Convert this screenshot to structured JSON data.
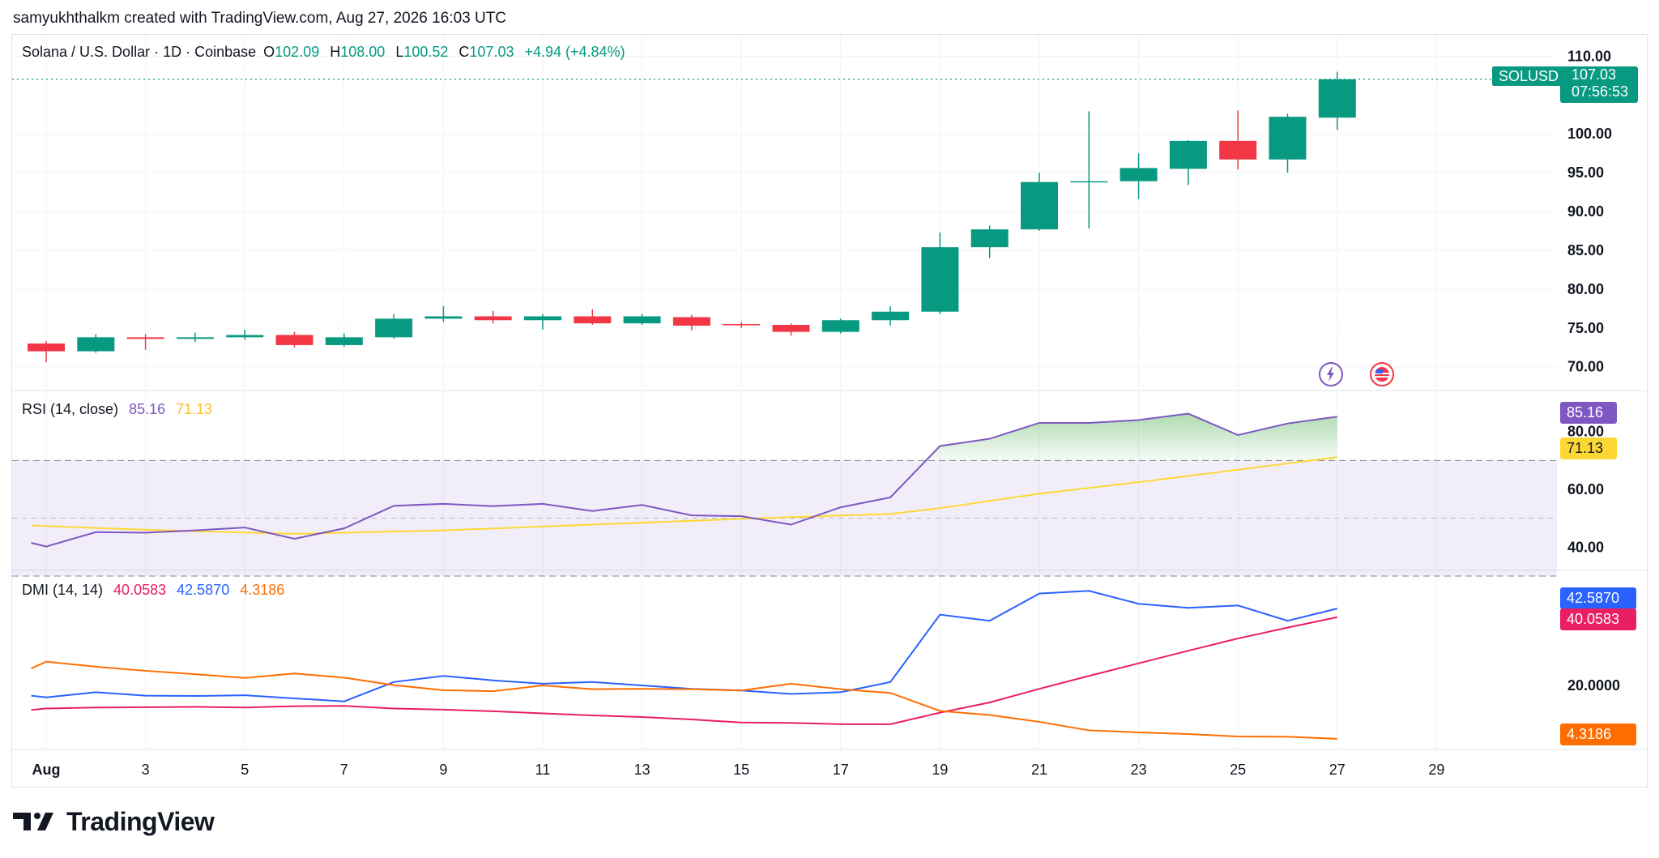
{
  "attribution": "samyukhthalkm created with TradingView.com, Aug 27, 2026 16:03 UTC",
  "legend": {
    "symbol": "Solana / U.S. Dollar · 1D · Coinbase",
    "o_label": "O",
    "o_value": "102.09",
    "h_label": "H",
    "h_value": "108.00",
    "l_label": "L",
    "l_value": "100.52",
    "c_label": "C",
    "c_value": "107.03",
    "change": "+4.94 (+4.84%)"
  },
  "price_tag": {
    "symbol": "SOLUSD",
    "price": "107.03",
    "countdown": "07:56:53"
  },
  "rsi_legend": {
    "name": "RSI (14, close)",
    "rsi": "85.16",
    "ma": "71.13"
  },
  "dmi_legend": {
    "name": "DMI (14, 14)",
    "minus_di": "40.0583",
    "plus_di": "42.5870",
    "adx": "4.3186"
  },
  "brand": "TradingView",
  "colors": {
    "up": "#089981",
    "down": "#f23645",
    "rsi": "#7e57c2",
    "rsi_ma": "#fdd835",
    "plus_di": "#2962ff",
    "minus_di": "#e91e63",
    "adx": "#ff6d00"
  },
  "chart_data": [
    {
      "type": "candlestick",
      "title": "Solana / U.S. Dollar · 1D · Coinbase",
      "ylim": [
        68.2,
        111.5
      ],
      "y_ticks": [
        "70.00",
        "75.00",
        "80.00",
        "85.00",
        "90.00",
        "95.00",
        "100.00",
        "110.00"
      ],
      "x_ticks": [
        {
          "day": 1,
          "label": "Aug"
        },
        {
          "day": 3,
          "label": "3"
        },
        {
          "day": 5,
          "label": "5"
        },
        {
          "day": 7,
          "label": "7"
        },
        {
          "day": 9,
          "label": "9"
        },
        {
          "day": 11,
          "label": "11"
        },
        {
          "day": 13,
          "label": "13"
        },
        {
          "day": 15,
          "label": "15"
        },
        {
          "day": 17,
          "label": "17"
        },
        {
          "day": 19,
          "label": "19"
        },
        {
          "day": 21,
          "label": "21"
        },
        {
          "day": 23,
          "label": "23"
        },
        {
          "day": 25,
          "label": "25"
        },
        {
          "day": 27,
          "label": "27"
        },
        {
          "day": 29,
          "label": "29"
        }
      ],
      "candles": [
        {
          "day": 1,
          "o": 73.0,
          "h": 73.3,
          "l": 70.6,
          "c": 72.0
        },
        {
          "day": 2,
          "o": 72.0,
          "h": 74.2,
          "l": 71.8,
          "c": 73.8
        },
        {
          "day": 3,
          "o": 73.8,
          "h": 74.2,
          "l": 72.2,
          "c": 73.6
        },
        {
          "day": 4,
          "o": 73.6,
          "h": 74.4,
          "l": 73.2,
          "c": 73.8
        },
        {
          "day": 5,
          "o": 73.8,
          "h": 74.8,
          "l": 73.5,
          "c": 74.1
        },
        {
          "day": 6,
          "o": 74.1,
          "h": 74.5,
          "l": 72.5,
          "c": 72.8
        },
        {
          "day": 7,
          "o": 72.8,
          "h": 74.3,
          "l": 72.6,
          "c": 73.8
        },
        {
          "day": 8,
          "o": 73.8,
          "h": 76.8,
          "l": 73.6,
          "c": 76.2
        },
        {
          "day": 9,
          "o": 76.2,
          "h": 77.8,
          "l": 75.8,
          "c": 76.5
        },
        {
          "day": 10,
          "o": 76.5,
          "h": 77.2,
          "l": 75.6,
          "c": 76.0
        },
        {
          "day": 11,
          "o": 76.0,
          "h": 76.8,
          "l": 74.8,
          "c": 76.5
        },
        {
          "day": 12,
          "o": 76.5,
          "h": 77.4,
          "l": 75.4,
          "c": 75.6
        },
        {
          "day": 13,
          "o": 75.6,
          "h": 76.8,
          "l": 75.4,
          "c": 76.5
        },
        {
          "day": 14,
          "o": 76.4,
          "h": 76.7,
          "l": 74.7,
          "c": 75.3
        },
        {
          "day": 15,
          "o": 75.5,
          "h": 75.8,
          "l": 75.0,
          "c": 75.4
        },
        {
          "day": 16,
          "o": 75.4,
          "h": 75.6,
          "l": 74.0,
          "c": 74.5
        },
        {
          "day": 17,
          "o": 74.5,
          "h": 76.2,
          "l": 74.3,
          "c": 76.0
        },
        {
          "day": 18,
          "o": 76.0,
          "h": 77.8,
          "l": 75.3,
          "c": 77.1
        },
        {
          "day": 19,
          "o": 77.1,
          "h": 87.3,
          "l": 76.8,
          "c": 85.4
        },
        {
          "day": 20,
          "o": 85.4,
          "h": 88.2,
          "l": 84.0,
          "c": 87.7
        },
        {
          "day": 21,
          "o": 87.7,
          "h": 95.0,
          "l": 87.5,
          "c": 93.8
        },
        {
          "day": 22,
          "o": 93.8,
          "h": 102.9,
          "l": 87.8,
          "c": 93.9
        },
        {
          "day": 23,
          "o": 93.9,
          "h": 97.5,
          "l": 91.6,
          "c": 95.6
        },
        {
          "day": 24,
          "o": 95.5,
          "h": 99.2,
          "l": 93.4,
          "c": 99.1
        },
        {
          "day": 25,
          "o": 99.1,
          "h": 103.0,
          "l": 95.4,
          "c": 96.7
        },
        {
          "day": 26,
          "o": 96.7,
          "h": 102.6,
          "l": 95.0,
          "c": 102.2
        },
        {
          "day": 27,
          "o": 102.09,
          "h": 108.0,
          "l": 100.52,
          "c": 107.03
        }
      ],
      "last_price": 107.03
    },
    {
      "type": "line",
      "title": "RSI (14, close)",
      "ylim": [
        30,
        90
      ],
      "y_ticks": [
        "40.00",
        "60.00",
        "80.00"
      ],
      "bands": {
        "upper": 70,
        "middle": 50,
        "lower": 30
      },
      "series": [
        {
          "name": "RSI",
          "x": [
            0.7,
            1,
            2,
            3,
            4,
            5,
            6,
            7,
            8,
            9,
            10,
            11,
            12,
            13,
            14,
            15,
            16,
            17,
            18,
            19,
            20,
            21,
            22,
            23,
            24,
            25,
            26,
            27
          ],
          "values": [
            41.5,
            40.2,
            45.2,
            45.0,
            45.8,
            46.8,
            42.9,
            46.5,
            54.3,
            55.0,
            54.2,
            55.0,
            52.5,
            54.6,
            51.0,
            50.7,
            47.8,
            53.8,
            57.2,
            75.0,
            77.5,
            83.0,
            83.0,
            84.0,
            86.2,
            78.8,
            82.8,
            85.16
          ]
        },
        {
          "name": "RSI-based MA",
          "x": [
            0.7,
            3,
            6,
            9,
            12,
            15,
            18,
            19,
            21,
            23,
            25,
            27
          ],
          "values": [
            47.5,
            46.0,
            44.6,
            45.8,
            47.8,
            49.8,
            51.5,
            53.5,
            58.5,
            62.5,
            66.8,
            71.13
          ]
        }
      ],
      "last_values": {
        "rsi": 85.16,
        "ma": 71.13
      }
    },
    {
      "type": "line",
      "title": "DMI (14, 14)",
      "ylim": [
        0,
        50
      ],
      "y_ticks": [
        "20.0000"
      ],
      "series": [
        {
          "name": "+DI",
          "x": [
            0.7,
            1,
            2,
            3,
            4,
            5,
            6,
            7,
            8,
            9,
            10,
            11,
            12,
            13,
            14,
            15,
            16,
            17,
            18,
            19,
            20,
            21,
            22,
            23,
            24,
            25,
            26,
            27
          ],
          "values": [
            17.0,
            16.5,
            18.0,
            17.0,
            16.9,
            17.1,
            16.2,
            15.3,
            21.0,
            22.8,
            21.5,
            20.5,
            21.0,
            20.0,
            19.0,
            18.5,
            17.5,
            18.0,
            21.0,
            40.8,
            39.0,
            47.0,
            47.8,
            44.0,
            42.8,
            43.5,
            39.0,
            42.587
          ]
        },
        {
          "name": "-DI",
          "x": [
            0.7,
            1,
            2,
            3,
            4,
            5,
            6,
            7,
            8,
            9,
            10,
            11,
            12,
            13,
            14,
            15,
            16,
            17,
            18,
            19,
            20,
            21,
            22,
            23,
            24,
            25,
            26,
            27
          ],
          "values": [
            12.8,
            13.2,
            13.5,
            13.6,
            13.7,
            13.5,
            13.9,
            14.0,
            13.2,
            12.9,
            12.4,
            11.8,
            11.2,
            10.7,
            10.0,
            9.1,
            9.0,
            8.6,
            8.6,
            12.0,
            15.0,
            19.0,
            22.8,
            26.5,
            30.2,
            33.8,
            37.0,
            40.0583
          ]
        },
        {
          "name": "ADX",
          "x": [
            0.7,
            1,
            2,
            3,
            4,
            5,
            6,
            7,
            8,
            9,
            10,
            11,
            12,
            13,
            14,
            15,
            16,
            17,
            18,
            19,
            20,
            21,
            22,
            23,
            24,
            25,
            26,
            27
          ],
          "values": [
            25.0,
            27.0,
            25.5,
            24.3,
            23.3,
            22.2,
            23.5,
            22.3,
            20.1,
            18.6,
            18.3,
            20.0,
            18.9,
            19.0,
            18.9,
            18.5,
            20.5,
            18.9,
            17.8,
            12.5,
            11.3,
            9.3,
            6.8,
            6.2,
            5.7,
            5.0,
            4.9,
            4.3186
          ]
        }
      ],
      "last_values": {
        "plus_di": 42.587,
        "minus_di": 40.0583,
        "adx": 4.3186
      }
    }
  ]
}
